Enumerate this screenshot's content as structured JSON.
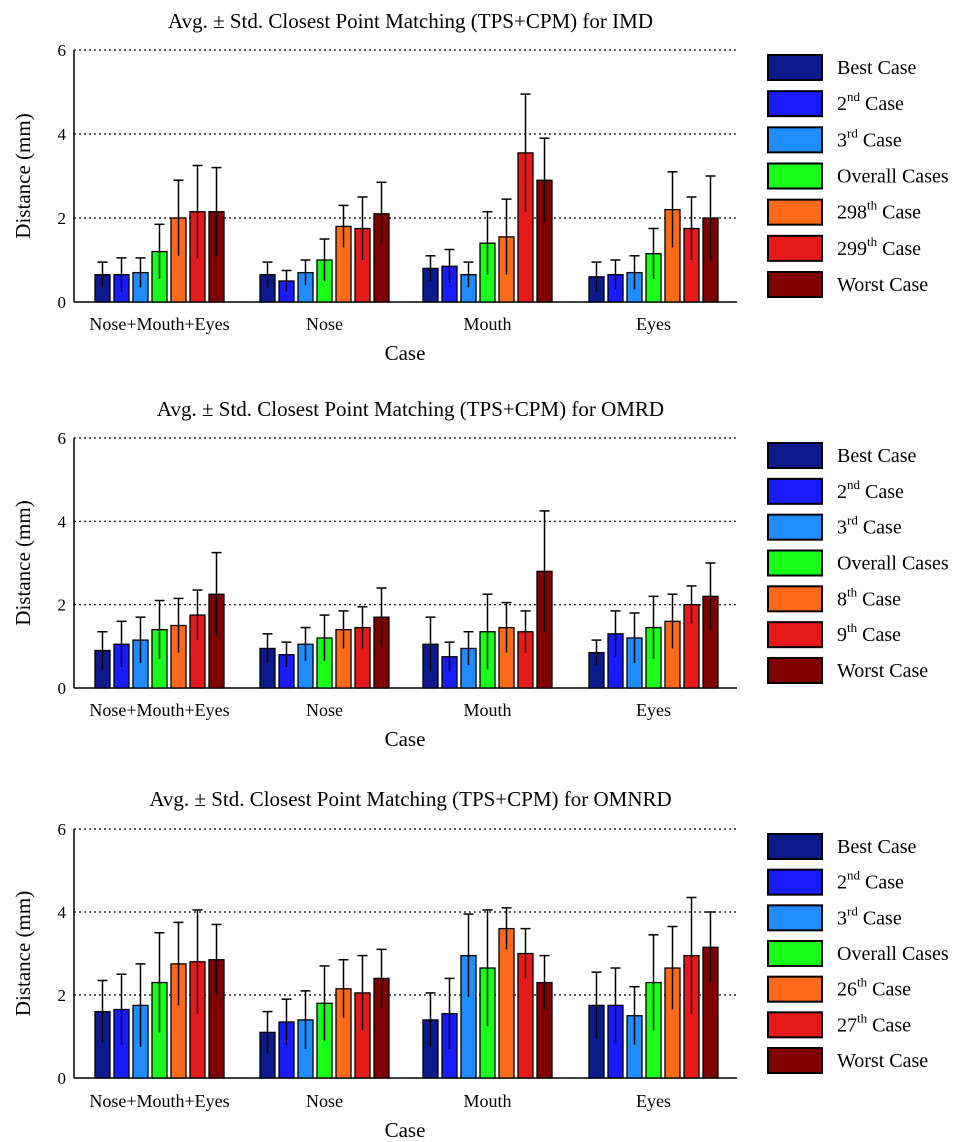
{
  "chart_data": [
    {
      "type": "bar",
      "title": "Avg. ± Std. Closest Point Matching (TPS+CPM) for IMD",
      "xlabel": "Case",
      "ylabel": "Distance (mm)",
      "ylim": [
        0,
        6
      ],
      "yticks": [
        "0",
        "2",
        "4",
        "6"
      ],
      "grid": "horizontal dotted",
      "legend_position": "right",
      "categories": [
        "Nose+Mouth+Eyes",
        "Nose",
        "Mouth",
        "Eyes"
      ],
      "series": [
        {
          "label": "Best Case",
          "sup": "",
          "label_rest": "",
          "color": "#0d1a8c",
          "values": [
            0.65,
            0.65,
            0.8,
            0.6
          ],
          "errors": [
            0.3,
            0.3,
            0.3,
            0.35
          ]
        },
        {
          "label": "2",
          "sup": "nd",
          "label_rest": " Case",
          "color": "#1a1aff",
          "values": [
            0.65,
            0.5,
            0.85,
            0.65
          ],
          "errors": [
            0.4,
            0.25,
            0.4,
            0.35
          ]
        },
        {
          "label": "3",
          "sup": "rd",
          "label_rest": " Case",
          "color": "#1f8cff",
          "values": [
            0.7,
            0.7,
            0.65,
            0.7
          ],
          "errors": [
            0.35,
            0.3,
            0.3,
            0.4
          ]
        },
        {
          "label": "Overall Cases",
          "sup": "",
          "label_rest": "",
          "color": "#1aff1a",
          "values": [
            1.2,
            1.0,
            1.4,
            1.15
          ],
          "errors": [
            0.65,
            0.5,
            0.75,
            0.6
          ]
        },
        {
          "label": "298",
          "sup": "th",
          "label_rest": " Case",
          "color": "#ff6a1a",
          "values": [
            2.0,
            1.8,
            1.55,
            2.2
          ],
          "errors": [
            0.9,
            0.5,
            0.9,
            0.9
          ]
        },
        {
          "label": "299",
          "sup": "th",
          "label_rest": " Case",
          "color": "#e61a1a",
          "values": [
            2.15,
            1.75,
            3.55,
            1.75
          ],
          "errors": [
            1.1,
            0.75,
            1.4,
            0.75
          ]
        },
        {
          "label": "Worst Case",
          "sup": "",
          "label_rest": "",
          "color": "#800000",
          "values": [
            2.15,
            2.1,
            2.9,
            2.0
          ],
          "errors": [
            1.05,
            0.75,
            1.0,
            1.0
          ]
        }
      ]
    },
    {
      "type": "bar",
      "title": "Avg. ± Std. Closest Point Matching (TPS+CPM) for OMRD",
      "xlabel": "Case",
      "ylabel": "Distance (mm)",
      "ylim": [
        0,
        6
      ],
      "yticks": [
        "0",
        "2",
        "4",
        "6"
      ],
      "grid": "horizontal dotted",
      "legend_position": "right",
      "categories": [
        "Nose+Mouth+Eyes",
        "Nose",
        "Mouth",
        "Eyes"
      ],
      "series": [
        {
          "label": "Best Case",
          "sup": "",
          "label_rest": "",
          "color": "#0d1a8c",
          "values": [
            0.9,
            0.95,
            1.05,
            0.85
          ],
          "errors": [
            0.45,
            0.35,
            0.65,
            0.3
          ]
        },
        {
          "label": "2",
          "sup": "nd",
          "label_rest": " Case",
          "color": "#1a1aff",
          "values": [
            1.05,
            0.8,
            0.75,
            1.3
          ],
          "errors": [
            0.55,
            0.3,
            0.35,
            0.55
          ]
        },
        {
          "label": "3",
          "sup": "rd",
          "label_rest": " Case",
          "color": "#1f8cff",
          "values": [
            1.15,
            1.05,
            0.95,
            1.2
          ],
          "errors": [
            0.55,
            0.4,
            0.4,
            0.6
          ]
        },
        {
          "label": "Overall Cases",
          "sup": "",
          "label_rest": "",
          "color": "#1aff1a",
          "values": [
            1.4,
            1.2,
            1.35,
            1.45
          ],
          "errors": [
            0.7,
            0.55,
            0.9,
            0.75
          ]
        },
        {
          "label": "8",
          "sup": "th",
          "label_rest": " Case",
          "color": "#ff6a1a",
          "values": [
            1.5,
            1.4,
            1.45,
            1.6
          ],
          "errors": [
            0.65,
            0.45,
            0.6,
            0.65
          ]
        },
        {
          "label": "9",
          "sup": "th",
          "label_rest": " Case",
          "color": "#e61a1a",
          "values": [
            1.75,
            1.45,
            1.35,
            2.0
          ],
          "errors": [
            0.6,
            0.5,
            0.5,
            0.45
          ]
        },
        {
          "label": "Worst Case",
          "sup": "",
          "label_rest": "",
          "color": "#800000",
          "values": [
            2.25,
            1.7,
            2.8,
            2.2
          ],
          "errors": [
            1.0,
            0.7,
            1.45,
            0.8
          ]
        }
      ]
    },
    {
      "type": "bar",
      "title": "Avg. ± Std. Closest Point Matching (TPS+CPM) for OMNRD",
      "xlabel": "Case",
      "ylabel": "Distance (mm)",
      "ylim": [
        0,
        6
      ],
      "yticks": [
        "0",
        "2",
        "4",
        "6"
      ],
      "grid": "horizontal dotted",
      "legend_position": "right",
      "categories": [
        "Nose+Mouth+Eyes",
        "Nose",
        "Mouth",
        "Eyes"
      ],
      "series": [
        {
          "label": "Best Case",
          "sup": "",
          "label_rest": "",
          "color": "#0d1a8c",
          "values": [
            1.6,
            1.1,
            1.4,
            1.75
          ],
          "errors": [
            0.75,
            0.5,
            0.65,
            0.8
          ]
        },
        {
          "label": "2",
          "sup": "nd",
          "label_rest": " Case",
          "color": "#1a1aff",
          "values": [
            1.65,
            1.35,
            1.55,
            1.75
          ],
          "errors": [
            0.85,
            0.55,
            0.85,
            0.9
          ]
        },
        {
          "label": "3",
          "sup": "rd",
          "label_rest": " Case",
          "color": "#1f8cff",
          "values": [
            1.75,
            1.4,
            2.95,
            1.5
          ],
          "errors": [
            1.0,
            0.7,
            1.0,
            0.7
          ]
        },
        {
          "label": "Overall Cases",
          "sup": "",
          "label_rest": "",
          "color": "#1aff1a",
          "values": [
            2.3,
            1.8,
            2.65,
            2.3
          ],
          "errors": [
            1.2,
            0.9,
            1.4,
            1.15
          ]
        },
        {
          "label": "26",
          "sup": "th",
          "label_rest": " Case",
          "color": "#ff6a1a",
          "values": [
            2.75,
            2.15,
            3.6,
            2.65
          ],
          "errors": [
            1.0,
            0.7,
            0.5,
            1.0
          ]
        },
        {
          "label": "27",
          "sup": "th",
          "label_rest": " Case",
          "color": "#e61a1a",
          "values": [
            2.8,
            2.05,
            3.0,
            2.95
          ],
          "errors": [
            1.25,
            0.9,
            0.6,
            1.4
          ]
        },
        {
          "label": "Worst Case",
          "sup": "",
          "label_rest": "",
          "color": "#800000",
          "values": [
            2.85,
            2.4,
            2.3,
            3.15
          ],
          "errors": [
            0.85,
            0.7,
            0.65,
            0.85
          ]
        }
      ]
    }
  ]
}
